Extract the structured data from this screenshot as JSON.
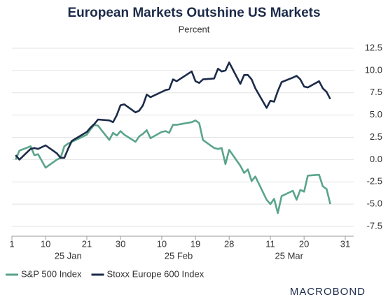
{
  "chart_data": {
    "type": "line",
    "title": "European Markets Outshine US Markets",
    "subtitle": "Percent",
    "x": [
      "2025-01-02",
      "2025-01-03",
      "2025-01-06",
      "2025-01-07",
      "2025-01-08",
      "2025-01-10",
      "2025-01-13",
      "2025-01-14",
      "2025-01-15",
      "2025-01-16",
      "2025-01-17",
      "2025-01-21",
      "2025-01-22",
      "2025-01-23",
      "2025-01-24",
      "2025-01-27",
      "2025-01-28",
      "2025-01-29",
      "2025-01-30",
      "2025-01-31",
      "2025-02-03",
      "2025-02-04",
      "2025-02-05",
      "2025-02-06",
      "2025-02-07",
      "2025-02-10",
      "2025-02-11",
      "2025-02-12",
      "2025-02-13",
      "2025-02-14",
      "2025-02-18",
      "2025-02-19",
      "2025-02-20",
      "2025-02-21",
      "2025-02-24",
      "2025-02-25",
      "2025-02-26",
      "2025-02-27",
      "2025-02-28",
      "2025-03-03",
      "2025-03-04",
      "2025-03-05",
      "2025-03-06",
      "2025-03-07",
      "2025-03-10",
      "2025-03-11",
      "2025-03-12",
      "2025-03-13",
      "2025-03-14",
      "2025-03-17",
      "2025-03-18",
      "2025-03-19",
      "2025-03-20",
      "2025-03-21",
      "2025-03-24",
      "2025-03-25",
      "2025-03-26",
      "2025-03-27"
    ],
    "series": [
      {
        "name": "S&P 500 Index",
        "color": "#5aa58a",
        "values": [
          0.0,
          1.0,
          1.5,
          0.5,
          0.6,
          -0.9,
          0.0,
          0.2,
          1.5,
          1.8,
          2.0,
          2.8,
          3.4,
          3.9,
          3.8,
          2.2,
          3.0,
          2.7,
          3.2,
          2.8,
          2.0,
          2.6,
          2.9,
          3.3,
          2.4,
          3.1,
          3.2,
          3.0,
          3.9,
          3.9,
          4.2,
          4.4,
          4.1,
          2.2,
          1.3,
          1.2,
          1.3,
          -0.5,
          1.1,
          -0.7,
          -1.5,
          -1.1,
          -2.4,
          -1.9,
          -4.5,
          -5.0,
          -4.4,
          -6.0,
          -4.1,
          -3.5,
          -4.5,
          -3.4,
          -3.6,
          -1.8,
          -1.7,
          -3.0,
          -3.3,
          -5.0
        ]
      },
      {
        "name": "Stoxx Europe 600 Index",
        "color": "#1c2b4a",
        "values": [
          0.5,
          0.0,
          1.2,
          1.3,
          1.2,
          1.6,
          0.7,
          0.2,
          0.2,
          1.2,
          2.1,
          3.1,
          3.6,
          4.0,
          4.5,
          4.4,
          4.2,
          5.0,
          6.1,
          6.2,
          5.3,
          5.5,
          6.1,
          7.3,
          7.0,
          7.6,
          7.8,
          7.9,
          9.0,
          8.8,
          9.9,
          8.8,
          8.6,
          9.0,
          9.1,
          10.2,
          9.9,
          10.0,
          10.9,
          8.5,
          9.5,
          9.5,
          9.0,
          8.0,
          5.8,
          6.6,
          6.5,
          7.7,
          8.7,
          9.2,
          9.4,
          9.0,
          8.2,
          8.1,
          8.8,
          8.0,
          7.6,
          6.8
        ]
      }
    ],
    "xlim": [
      "2025-01-01",
      "2025-03-31"
    ],
    "xticks": [
      {
        "value": "2025-01-01",
        "label": "1"
      },
      {
        "value": "2025-01-10",
        "label": "10"
      },
      {
        "value": "2025-01-21",
        "label": "21"
      },
      {
        "value": "2025-01-30",
        "label": "30"
      },
      {
        "value": "2025-02-10",
        "label": "10"
      },
      {
        "value": "2025-02-19",
        "label": "19"
      },
      {
        "value": "2025-02-28",
        "label": "28"
      },
      {
        "value": "2025-03-11",
        "label": "11"
      },
      {
        "value": "2025-03-20",
        "label": "20"
      },
      {
        "value": "2025-03-31",
        "label": "31"
      }
    ],
    "month_labels": [
      {
        "value": "2025-01",
        "label": "25 Jan"
      },
      {
        "value": "2025-02",
        "label": "25 Feb"
      },
      {
        "value": "2025-03",
        "label": "25 Mar"
      }
    ],
    "ylim": [
      -7.5,
      12.5
    ],
    "yticks": [
      {
        "value": 12.5,
        "label": "12.5"
      },
      {
        "value": 10,
        "label": "10.0"
      },
      {
        "value": 7.5,
        "label": "7.5"
      },
      {
        "value": 5,
        "label": "5.0"
      },
      {
        "value": 2.5,
        "label": "2.5"
      },
      {
        "value": 0,
        "label": "0.0"
      },
      {
        "value": -2.5,
        "label": "-2.5"
      },
      {
        "value": -5,
        "label": "-5.0"
      },
      {
        "value": -7.5,
        "label": "-7.5"
      }
    ],
    "grid": true,
    "source": "MACROBOND"
  }
}
